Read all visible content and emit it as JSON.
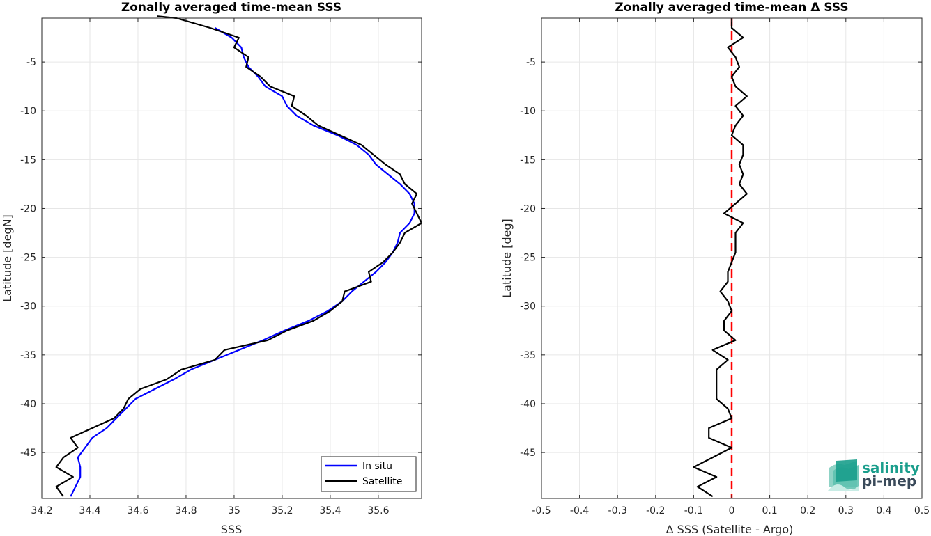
{
  "chart_data": [
    {
      "type": "line",
      "title": "Zonally averaged time-mean SSS",
      "xlabel": "SSS",
      "ylabel": "Latitude [degN]",
      "xlim": [
        34.2,
        35.78
      ],
      "ylim": [
        -49.7,
        -0.5
      ],
      "xticks": [
        34.2,
        34.4,
        34.6,
        34.8,
        35,
        35.2,
        35.4,
        35.6
      ],
      "xtick_labels": [
        "34.2",
        "34.4",
        "34.6",
        "34.8",
        "35",
        "35.2",
        "35.4",
        "35.6"
      ],
      "yticks": [
        -5,
        -10,
        -15,
        -20,
        -25,
        -30,
        -35,
        -40,
        -45
      ],
      "ytick_labels": [
        "-5",
        "-10",
        "-15",
        "-20",
        "-25",
        "-30",
        "-35",
        "-40",
        "-45"
      ],
      "grid": true,
      "legend_position": "bottom-right",
      "series": [
        {
          "name": "In situ",
          "color": "#0000ff",
          "lat": [
            -1.5,
            -2.5,
            -3.5,
            -4.5,
            -5.5,
            -6.5,
            -7.5,
            -8.5,
            -9.5,
            -10.5,
            -11.5,
            -12.5,
            -13.5,
            -14.5,
            -15.5,
            -16.5,
            -17.5,
            -18.5,
            -19.5,
            -20.5,
            -21.5,
            -22.5,
            -23.5,
            -24.5,
            -25.5,
            -26.5,
            -27.5,
            -28.5,
            -29.5,
            -30.5,
            -31.5,
            -32.5,
            -33.5,
            -34.5,
            -35.5,
            -36.5,
            -37.5,
            -38.5,
            -39.5,
            -40.5,
            -41.5,
            -42.5,
            -43.5,
            -44.5,
            -45.5,
            -46.5,
            -47.5,
            -48.5,
            -49.5
          ],
          "values": [
            34.92,
            34.99,
            35.03,
            35.04,
            35.06,
            35.1,
            35.13,
            35.2,
            35.22,
            35.26,
            35.33,
            35.43,
            35.51,
            35.56,
            35.59,
            35.64,
            35.69,
            35.73,
            35.75,
            35.75,
            35.73,
            35.69,
            35.68,
            35.66,
            35.63,
            35.59,
            35.54,
            35.49,
            35.45,
            35.39,
            35.31,
            35.21,
            35.12,
            35.02,
            34.92,
            34.82,
            34.75,
            34.67,
            34.59,
            34.55,
            34.51,
            34.47,
            34.41,
            34.38,
            34.35,
            34.36,
            34.36,
            34.34,
            34.32
          ]
        },
        {
          "name": "Satellite",
          "color": "#000000",
          "lat": [
            -0.3,
            -0.5,
            -1.5,
            -2.5,
            -3.5,
            -4.5,
            -5.5,
            -6.5,
            -7.5,
            -8.5,
            -9.5,
            -10.5,
            -11.5,
            -12.5,
            -13.5,
            -14.5,
            -15.5,
            -16.5,
            -17.5,
            -18.5,
            -19.5,
            -20.5,
            -21.5,
            -22.5,
            -23.5,
            -24.5,
            -25.5,
            -26.5,
            -27.5,
            -28.5,
            -29.5,
            -30.5,
            -31.5,
            -32.5,
            -33.5,
            -34.5,
            -35.5,
            -36.5,
            -37.5,
            -38.5,
            -39.5,
            -40.5,
            -41.5,
            -42.5,
            -43.5,
            -44.5,
            -45.5,
            -46.5,
            -47.5,
            -48.5,
            -49.5
          ],
          "values": [
            34.68,
            34.76,
            34.9,
            35.02,
            35.0,
            35.06,
            35.05,
            35.11,
            35.15,
            35.25,
            35.24,
            35.3,
            35.35,
            35.44,
            35.53,
            35.58,
            35.63,
            35.69,
            35.71,
            35.76,
            35.74,
            35.76,
            35.78,
            35.71,
            35.69,
            35.66,
            35.62,
            35.56,
            35.57,
            35.46,
            35.45,
            35.4,
            35.33,
            35.22,
            35.14,
            34.96,
            34.92,
            34.78,
            34.72,
            34.61,
            34.56,
            34.54,
            34.5,
            34.41,
            34.32,
            34.35,
            34.29,
            34.26,
            34.33,
            34.26,
            34.29
          ]
        }
      ]
    },
    {
      "type": "line",
      "title": "Zonally averaged time-mean Δ SSS",
      "xlabel": "Δ SSS (Satellite - Argo)",
      "ylabel": "Latitude [deg]",
      "xlim": [
        -0.5,
        0.5
      ],
      "ylim": [
        -49.7,
        -0.5
      ],
      "xticks": [
        -0.5,
        -0.4,
        -0.3,
        -0.2,
        -0.1,
        0,
        0.1,
        0.2,
        0.3,
        0.4,
        0.5
      ],
      "xtick_labels": [
        "-0.5",
        "-0.4",
        "-0.3",
        "-0.2",
        "-0.1",
        "0",
        "0.1",
        "0.2",
        "0.3",
        "0.4",
        "0.5"
      ],
      "yticks": [
        -5,
        -10,
        -15,
        -20,
        -25,
        -30,
        -35,
        -40,
        -45
      ],
      "ytick_labels": [
        "-5",
        "-10",
        "-15",
        "-20",
        "-25",
        "-30",
        "-35",
        "-40",
        "-45"
      ],
      "grid": true,
      "reference_line": {
        "x": 0,
        "style": "dashed",
        "color": "#ff0000"
      },
      "series": [
        {
          "color": "#000000",
          "lat": [
            -0.5,
            -1.5,
            -2.5,
            -3.5,
            -4.5,
            -5.5,
            -6.5,
            -7.5,
            -8.5,
            -9.5,
            -10.5,
            -11.5,
            -12.5,
            -13.5,
            -14.5,
            -15.5,
            -16.5,
            -17.5,
            -18.5,
            -19.5,
            -20.5,
            -21.5,
            -22.5,
            -23.5,
            -24.5,
            -25.5,
            -26.5,
            -27.5,
            -28.5,
            -29.5,
            -30.5,
            -31.5,
            -32.5,
            -33.5,
            -34.5,
            -35.5,
            -36.5,
            -37.5,
            -38.5,
            -39.5,
            -40.5,
            -41.5,
            -42.5,
            -43.5,
            -44.5,
            -45.5,
            -46.5,
            -47.5,
            -48.5,
            -49.5
          ],
          "values": [
            0.0,
            0.0,
            0.03,
            -0.01,
            0.01,
            0.02,
            0.0,
            0.01,
            0.04,
            0.01,
            0.03,
            0.01,
            0.0,
            0.03,
            0.03,
            0.02,
            0.03,
            0.02,
            0.04,
            0.01,
            -0.02,
            0.03,
            0.01,
            0.01,
            0.01,
            0.0,
            -0.01,
            -0.01,
            -0.03,
            -0.01,
            0.0,
            -0.02,
            -0.02,
            0.01,
            -0.05,
            -0.01,
            -0.04,
            -0.04,
            -0.04,
            -0.04,
            -0.01,
            0.0,
            -0.06,
            -0.06,
            0.0,
            -0.05,
            -0.1,
            -0.04,
            -0.09,
            -0.05
          ]
        }
      ]
    }
  ],
  "legend": {
    "in_situ_label": "In situ",
    "satellite_label": "Satellite"
  },
  "logo": {
    "line1": "salinity",
    "line2": "pi-mep",
    "accent": "#1a9e8c"
  }
}
